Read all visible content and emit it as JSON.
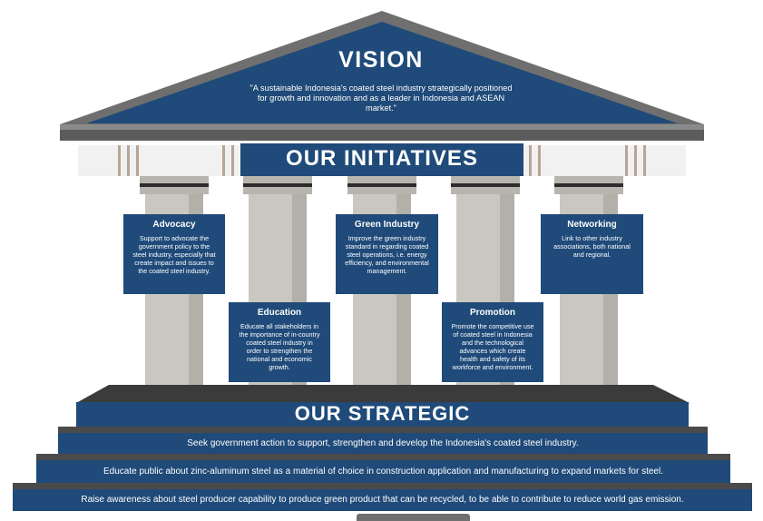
{
  "vision": {
    "title": "VISION",
    "statement": "\"A sustainable Indonesia's coated steel industry strategically positioned  for growth and innovation and as a leader in Indonesia and ASEAN market.\""
  },
  "initiatives": {
    "title": "OUR INITIATIVES",
    "items": [
      {
        "title": "Advocacy",
        "text": "Support to advocate the government policy to the steel industry, especially that create impact and issues to the coated steel industry."
      },
      {
        "title": "Education",
        "text": "Educate all stakeholders in the importance of in-country coated steel industry in order to strengthen the national and economic growth."
      },
      {
        "title": "Green Industry",
        "text": "Improve the green industry standard in regarding coated steel operations, i.e. energy efficiency, and environmental management."
      },
      {
        "title": "Promotion",
        "text": "Promote the competitive use of coated steel in Indonesia and the technological advances which create health and safety of its workforce and environment."
      },
      {
        "title": "Networking",
        "text": "Link to other industry associations, both national and regional."
      }
    ]
  },
  "strategic": {
    "title": "OUR STRATEGIC",
    "steps": [
      "Seek government action to support, strengthen and develop the Indonesia's coated steel industry.",
      "Educate public about zinc-aluminum steel as a material of choice in construction application and manufacturing to expand markets for steel.",
      "Raise awareness about steel producer capability to produce green product that can be recycled, to be able to contribute to reduce world gas emission."
    ]
  },
  "colors": {
    "navy": "#1f4a79",
    "roof_gray": "#707070",
    "column_gray": "#cac7c0",
    "dark_gray": "#3b3b3b"
  }
}
